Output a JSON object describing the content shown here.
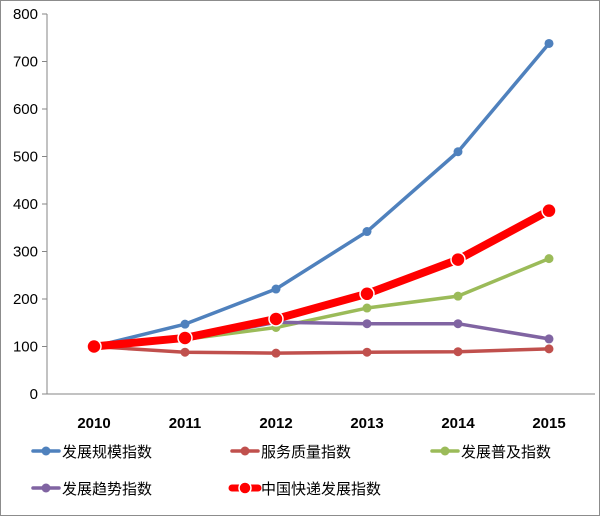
{
  "chart_data": {
    "type": "line",
    "title": "",
    "xlabel": "",
    "ylabel": "",
    "ylim": [
      0,
      800
    ],
    "yticks": [
      "0",
      "100",
      "200",
      "300",
      "400",
      "500",
      "600",
      "700",
      "800"
    ],
    "categories": [
      "2010",
      "2011",
      "2012",
      "2013",
      "2014",
      "2015"
    ],
    "series": [
      {
        "name": "发展规模指数",
        "color": "#4f81bd",
        "values": [
          100,
          147,
          221,
          342,
          510,
          738
        ]
      },
      {
        "name": "服务质量指数",
        "color": "#c0504d",
        "values": [
          100,
          88,
          86,
          88,
          89,
          95
        ]
      },
      {
        "name": "发展普及指数",
        "color": "#9bbb59",
        "values": [
          100,
          115,
          140,
          181,
          206,
          285
        ]
      },
      {
        "name": "发展趋势指数",
        "color": "#8064a2",
        "values": [
          100,
          115,
          151,
          148,
          148,
          116
        ]
      },
      {
        "name": "中国快递发展指数",
        "color": "#ff0000",
        "values": [
          100,
          118,
          158,
          211,
          283,
          386
        ]
      }
    ],
    "grid": false,
    "legend_position": "bottom"
  }
}
